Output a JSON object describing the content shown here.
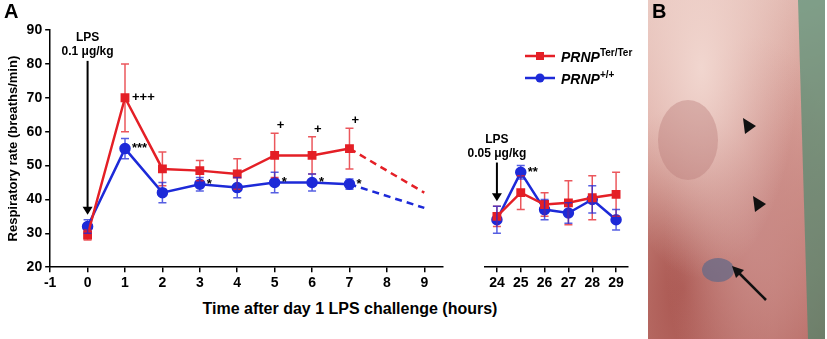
{
  "panels": [
    "A",
    "B"
  ],
  "chart_data": [
    {
      "type": "line",
      "y_label": "Respiratory rate (breaths/min)",
      "x_label": "Time after day 1 LPS challenge (hours)",
      "xlim": [
        -1,
        9.5
      ],
      "xticks": [
        -1,
        0,
        1,
        2,
        3,
        4,
        5,
        6,
        7,
        8,
        9
      ],
      "ylim": [
        20,
        90
      ],
      "yticks": [
        20,
        30,
        40,
        50,
        60,
        70,
        80,
        90
      ],
      "grid": false,
      "arrows": [
        {
          "x": 0,
          "label": [
            "LPS",
            "0.1 μg/kg"
          ]
        }
      ],
      "series": [
        {
          "name": "PRNP",
          "superscript": "Ter/Ter",
          "color": "#e41f26",
          "marker": "square",
          "x": [
            0,
            1,
            2,
            3,
            4,
            5,
            6,
            7
          ],
          "values": [
            29.5,
            70,
            49,
            48.5,
            47.5,
            53,
            53,
            55
          ],
          "errors": [
            1.5,
            10,
            5,
            3,
            4.5,
            6.5,
            5.5,
            6
          ],
          "annotations": [
            {
              "x": 1,
              "text": "+++"
            },
            {
              "x": 5,
              "text": "+"
            },
            {
              "x": 6,
              "text": "+"
            },
            {
              "x": 7,
              "text": "+"
            }
          ],
          "projection": {
            "x": [
              7,
              9
            ],
            "values": [
              55,
              42
            ],
            "line_style": "dashed"
          }
        },
        {
          "name": "PRNP",
          "superscript": "+/+",
          "color": "#1d2ad8",
          "marker": "circle",
          "x": [
            0,
            1,
            2,
            3,
            4,
            5,
            6,
            7
          ],
          "values": [
            32,
            55,
            42,
            44.5,
            43.5,
            45,
            45,
            44.5
          ],
          "errors": [
            2,
            3,
            3,
            2,
            3,
            3,
            2.5,
            1.5
          ],
          "annotations": [
            {
              "x": 1,
              "text": "***"
            },
            {
              "x": 3,
              "text": "*"
            },
            {
              "x": 5,
              "text": "*"
            },
            {
              "x": 6,
              "text": "*"
            },
            {
              "x": 7,
              "text": "*"
            }
          ],
          "projection": {
            "x": [
              7,
              9
            ],
            "values": [
              44.5,
              37.5
            ],
            "line_style": "dashed"
          }
        }
      ]
    },
    {
      "type": "line",
      "xlim": [
        23.5,
        29.5
      ],
      "xticks": [
        24,
        25,
        26,
        27,
        28,
        29
      ],
      "ylim": [
        20,
        90
      ],
      "grid": false,
      "tick_labels": "x",
      "legend": "top-right",
      "arrows": [
        {
          "x": 24,
          "label": [
            "LPS",
            "0.05 μg/kg"
          ]
        }
      ],
      "series": [
        {
          "name": "PRNP",
          "superscript": "Ter/Ter",
          "color": "#e41f26",
          "marker": "square",
          "x": [
            24,
            25,
            26,
            27,
            28,
            29
          ],
          "values": [
            35,
            42,
            38.5,
            39,
            40.5,
            41.5
          ],
          "errors": [
            3,
            5,
            3.5,
            6.5,
            6.5,
            6.5
          ]
        },
        {
          "name": "PRNP",
          "superscript": "+/+",
          "color": "#1d2ad8",
          "marker": "circle",
          "x": [
            24,
            25,
            26,
            27,
            28,
            29
          ],
          "values": [
            34,
            48,
            37,
            36,
            40,
            34
          ],
          "errors": [
            4,
            2,
            3,
            3,
            4,
            3
          ],
          "annotations": [
            {
              "x": 25,
              "text": "**"
            }
          ]
        }
      ]
    }
  ]
}
